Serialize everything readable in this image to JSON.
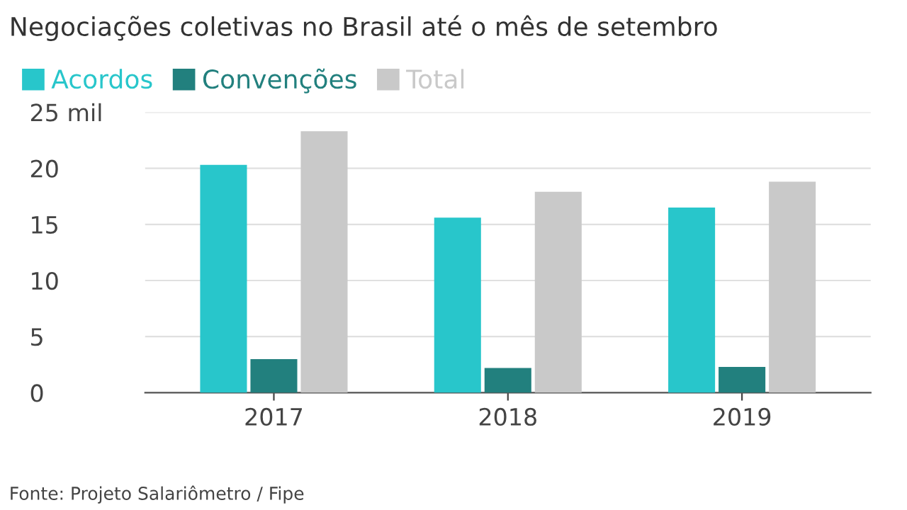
{
  "chart_data": {
    "type": "bar",
    "title": "Negociações coletivas no Brasil até o mês de setembro",
    "categories": [
      "2017",
      "2018",
      "2019"
    ],
    "series": [
      {
        "name": "Acordos",
        "color": "#28c6cb",
        "values": [
          20.3,
          15.6,
          16.5
        ]
      },
      {
        "name": "Convenções",
        "color": "#22807e",
        "values": [
          3.0,
          2.2,
          2.3
        ]
      },
      {
        "name": "Total",
        "color": "#c9c9c9",
        "values": [
          23.3,
          17.9,
          18.8
        ]
      }
    ],
    "ylim": [
      0,
      25
    ],
    "yticks": [
      0,
      5,
      10,
      15,
      20,
      {
        "value": 25,
        "label": "25 mil"
      }
    ],
    "grid": "y",
    "legend": "top left",
    "annotations": [
      "Fonte: Projeto Salariômetro / Fipe"
    ]
  }
}
